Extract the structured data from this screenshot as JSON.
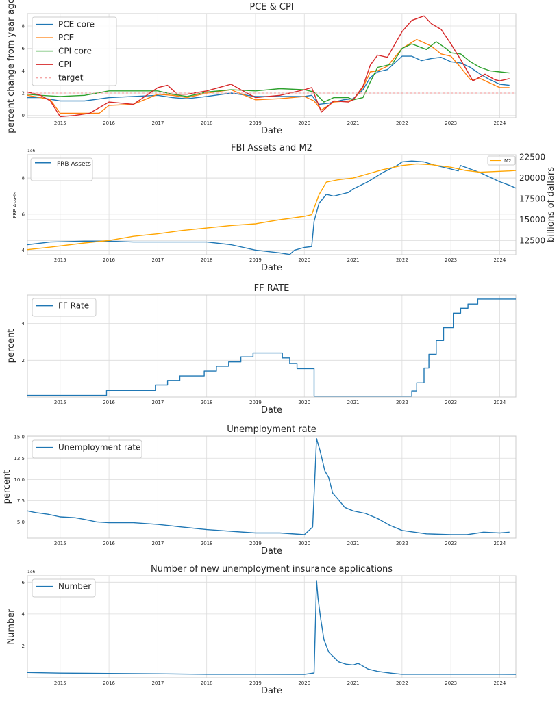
{
  "chart_data": [
    {
      "type": "line",
      "title": "PCE & CPI",
      "xlabel": "Date",
      "ylabel": "percent change from year ago",
      "xlim": [
        2014.33,
        2024.33
      ],
      "ylim": [
        -0.2,
        9.1
      ],
      "x_ticks": [
        "2015",
        "2016",
        "2017",
        "2018",
        "2019",
        "2020",
        "2021",
        "2022",
        "2023",
        "2024"
      ],
      "y_ticks": [
        "0",
        "2",
        "4",
        "6",
        "8"
      ],
      "legend": "upper-left",
      "grid": true,
      "series": [
        {
          "name": "PCE core",
          "color": "#1f77b4",
          "x": [
            2014.33,
            2014.6,
            2015,
            2015.5,
            2016,
            2016.5,
            2017,
            2017.3,
            2017.6,
            2018,
            2018.5,
            2019,
            2019.5,
            2020,
            2020.15,
            2020.3,
            2020.5,
            2020.8,
            2021,
            2021.2,
            2021.35,
            2021.5,
            2021.7,
            2022,
            2022.2,
            2022.4,
            2022.6,
            2022.8,
            2023,
            2023.2,
            2023.4,
            2023.6,
            2023.8,
            2024,
            2024.2
          ],
          "values": [
            1.6,
            1.6,
            1.3,
            1.3,
            1.6,
            1.7,
            1.8,
            1.6,
            1.5,
            1.7,
            2.0,
            1.7,
            1.7,
            1.7,
            1.8,
            1.0,
            1.1,
            1.4,
            1.5,
            2.3,
            3.4,
            3.9,
            4.1,
            5.3,
            5.3,
            4.9,
            5.1,
            5.2,
            4.8,
            4.7,
            4.3,
            3.7,
            3.2,
            2.8,
            2.7
          ]
        },
        {
          "name": "PCE",
          "color": "#ff7f0e",
          "x": [
            2014.33,
            2014.6,
            2014.8,
            2015,
            2015.5,
            2015.8,
            2016,
            2016.5,
            2017,
            2017.3,
            2017.6,
            2018,
            2018.5,
            2019,
            2019.5,
            2020,
            2020.2,
            2020.35,
            2020.6,
            2020.9,
            2021,
            2021.2,
            2021.35,
            2021.5,
            2021.7,
            2022,
            2022.3,
            2022.45,
            2022.6,
            2022.8,
            2023,
            2023.2,
            2023.4,
            2023.6,
            2023.8,
            2024,
            2024.2
          ],
          "values": [
            1.8,
            1.6,
            1.4,
            0.2,
            0.2,
            0.2,
            0.9,
            1.0,
            1.9,
            1.8,
            1.6,
            2.0,
            2.3,
            1.4,
            1.5,
            1.7,
            1.3,
            0.5,
            1.2,
            1.3,
            1.4,
            2.5,
            3.9,
            4.0,
            4.4,
            6.0,
            6.8,
            6.5,
            6.2,
            5.5,
            5.3,
            4.3,
            3.2,
            3.3,
            2.9,
            2.5,
            2.5
          ]
        },
        {
          "name": "CPI core",
          "color": "#2ca02c",
          "x": [
            2014.33,
            2014.6,
            2015,
            2015.5,
            2016,
            2016.5,
            2017,
            2017.3,
            2017.6,
            2018,
            2018.5,
            2019,
            2019.5,
            2020,
            2020.2,
            2020.4,
            2020.6,
            2020.9,
            2021,
            2021.2,
            2021.35,
            2021.5,
            2021.8,
            2022,
            2022.2,
            2022.5,
            2022.7,
            2022.9,
            2023,
            2023.2,
            2023.4,
            2023.6,
            2023.8,
            2024,
            2024.2
          ],
          "values": [
            1.9,
            1.8,
            1.7,
            1.8,
            2.2,
            2.2,
            2.2,
            1.9,
            1.7,
            2.1,
            2.3,
            2.2,
            2.4,
            2.3,
            2.1,
            1.2,
            1.6,
            1.6,
            1.4,
            1.6,
            3.0,
            4.3,
            4.6,
            6.0,
            6.4,
            5.9,
            6.6,
            6.0,
            5.6,
            5.5,
            4.8,
            4.3,
            4.0,
            3.9,
            3.8
          ]
        },
        {
          "name": "CPI",
          "color": "#d62728",
          "x": [
            2014.33,
            2014.6,
            2014.8,
            2015,
            2015.3,
            2015.6,
            2016,
            2016.5,
            2017,
            2017.2,
            2017.4,
            2017.6,
            2018,
            2018.5,
            2018.7,
            2019,
            2019.5,
            2020,
            2020.15,
            2020.35,
            2020.6,
            2020.9,
            2021,
            2021.2,
            2021.35,
            2021.5,
            2021.7,
            2022,
            2022.2,
            2022.45,
            2022.6,
            2022.8,
            2023,
            2023.2,
            2023.45,
            2023.7,
            2023.9,
            2024,
            2024.2
          ],
          "values": [
            2.1,
            1.8,
            1.3,
            -0.1,
            0.0,
            0.2,
            1.2,
            1.0,
            2.5,
            2.7,
            1.9,
            1.9,
            2.2,
            2.8,
            2.3,
            1.6,
            1.8,
            2.3,
            2.5,
            0.3,
            1.3,
            1.2,
            1.4,
            2.6,
            4.5,
            5.4,
            5.2,
            7.5,
            8.5,
            8.9,
            8.2,
            7.7,
            6.4,
            5.0,
            3.1,
            3.7,
            3.2,
            3.1,
            3.3
          ]
        },
        {
          "name": "target",
          "color": "#f4a6a6",
          "x": [
            2014.33,
            2024.33
          ],
          "values": [
            2,
            2
          ]
        }
      ]
    },
    {
      "type": "line",
      "title": "FBI Assets and M2",
      "xlabel": "Date",
      "ylabel": "FRB Assets",
      "y_offset_label": "1e6",
      "y2label": "billions of dallars",
      "xlim": [
        2014.33,
        2024.33
      ],
      "ylim": [
        3.75,
        9.3
      ],
      "y2lim": [
        10800,
        22800
      ],
      "x_ticks": [
        "2015",
        "2016",
        "2017",
        "2018",
        "2019",
        "2020",
        "2021",
        "2022",
        "2023",
        "2024"
      ],
      "y_ticks": [
        "4",
        "6",
        "8"
      ],
      "y2_ticks": [
        "12500",
        "15000",
        "17500",
        "20000",
        "22500"
      ],
      "legend": "upper-left",
      "legend2": "upper-right",
      "grid": true,
      "series": [
        {
          "name": "FRB Assets",
          "axis": "left",
          "color": "#1f77b4",
          "x": [
            2014.33,
            2014.8,
            2015.5,
            2016,
            2016.5,
            2017,
            2017.5,
            2018,
            2018.5,
            2019,
            2019.5,
            2019.7,
            2019.8,
            2020,
            2020.15,
            2020.2,
            2020.3,
            2020.45,
            2020.6,
            2020.9,
            2021,
            2021.3,
            2021.6,
            2021.9,
            2022,
            2022.2,
            2022.45,
            2022.7,
            2023,
            2023.15,
            2023.2,
            2023.3,
            2023.6,
            2024,
            2024.2,
            2024.33
          ],
          "values": [
            4.3,
            4.45,
            4.5,
            4.5,
            4.45,
            4.45,
            4.45,
            4.45,
            4.3,
            4.0,
            3.85,
            3.76,
            4.0,
            4.15,
            4.2,
            5.6,
            6.6,
            7.1,
            7.0,
            7.2,
            7.4,
            7.8,
            8.3,
            8.7,
            8.9,
            8.95,
            8.9,
            8.7,
            8.5,
            8.4,
            8.7,
            8.6,
            8.3,
            7.8,
            7.6,
            7.45
          ]
        },
        {
          "name": "M2",
          "axis": "right",
          "color": "#ffa500",
          "x": [
            2014.33,
            2014.8,
            2015.5,
            2016,
            2016.5,
            2017,
            2017.5,
            2018,
            2018.5,
            2019,
            2019.5,
            2020,
            2020.15,
            2020.3,
            2020.45,
            2020.7,
            2021,
            2021.3,
            2021.6,
            2022,
            2022.3,
            2022.6,
            2023,
            2023.3,
            2023.6,
            2024,
            2024.2,
            2024.33
          ],
          "values": [
            11400,
            11700,
            12200,
            12500,
            13000,
            13300,
            13700,
            14000,
            14300,
            14500,
            15000,
            15400,
            15600,
            18000,
            19500,
            19800,
            20000,
            20500,
            21000,
            21500,
            21700,
            21600,
            21300,
            20900,
            20700,
            20800,
            20850,
            20900
          ]
        }
      ]
    },
    {
      "type": "line",
      "title": "FF RATE",
      "xlabel": "Date",
      "ylabel": "percent",
      "xlim": [
        2014.33,
        2024.33
      ],
      "ylim": [
        0.0,
        5.55
      ],
      "x_ticks": [
        "2015",
        "2016",
        "2017",
        "2018",
        "2019",
        "2020",
        "2021",
        "2022",
        "2023",
        "2024"
      ],
      "y_ticks": [
        "2",
        "4"
      ],
      "legend": "upper-left",
      "grid": true,
      "series": [
        {
          "name": "FF Rate",
          "color": "#1f77b4",
          "step": true,
          "x": [
            2014.33,
            2015.95,
            2016.95,
            2017.2,
            2017.45,
            2017.95,
            2018.2,
            2018.45,
            2018.7,
            2018.95,
            2019.55,
            2019.7,
            2019.85,
            2020.2,
            2022.2,
            2022.3,
            2022.45,
            2022.55,
            2022.7,
            2022.85,
            2023.05,
            2023.2,
            2023.35,
            2023.55,
            2024.33
          ],
          "values": [
            0.09,
            0.36,
            0.65,
            0.9,
            1.15,
            1.41,
            1.68,
            1.91,
            2.19,
            2.4,
            2.13,
            1.83,
            1.55,
            0.05,
            0.33,
            0.77,
            1.58,
            2.33,
            3.08,
            3.78,
            4.57,
            4.83,
            5.06,
            5.33,
            5.33
          ]
        }
      ]
    },
    {
      "type": "line",
      "title": "Unemployment rate",
      "xlabel": "Date",
      "ylabel": "percent",
      "xlim": [
        2014.33,
        2024.33
      ],
      "ylim": [
        3.1,
        15.1
      ],
      "x_ticks": [
        "2015",
        "2016",
        "2017",
        "2018",
        "2019",
        "2020",
        "2021",
        "2022",
        "2023",
        "2024"
      ],
      "y_ticks": [
        "5.0",
        "7.5",
        "10.0",
        "12.5",
        "15.0"
      ],
      "legend": "upper-left",
      "grid": true,
      "series": [
        {
          "name": "Unemployment rate",
          "color": "#1f77b4",
          "x": [
            2014.33,
            2014.5,
            2014.75,
            2015,
            2015.3,
            2015.5,
            2015.75,
            2016,
            2016.5,
            2017,
            2017.5,
            2018,
            2018.5,
            2019,
            2019.5,
            2020,
            2020.17,
            2020.25,
            2020.33,
            2020.42,
            2020.5,
            2020.58,
            2020.67,
            2020.83,
            2021,
            2021.25,
            2021.5,
            2021.75,
            2022,
            2022.5,
            2023,
            2023.33,
            2023.67,
            2024,
            2024.2
          ],
          "values": [
            6.3,
            6.1,
            5.9,
            5.6,
            5.5,
            5.3,
            5.0,
            4.9,
            4.9,
            4.7,
            4.4,
            4.1,
            3.9,
            3.7,
            3.7,
            3.5,
            4.4,
            14.8,
            13.2,
            11.0,
            10.2,
            8.4,
            7.8,
            6.7,
            6.3,
            6.0,
            5.4,
            4.6,
            4.0,
            3.6,
            3.5,
            3.5,
            3.8,
            3.7,
            3.8
          ]
        }
      ]
    },
    {
      "type": "line",
      "title": "Number of new unemployment insurance applications",
      "xlabel": "Date",
      "ylabel": "Number",
      "y_offset_label": "1e6",
      "xlim": [
        2014.33,
        2024.33
      ],
      "ylim": [
        0.0,
        6.4
      ],
      "x_ticks": [
        "2015",
        "2016",
        "2017",
        "2018",
        "2019",
        "2020",
        "2021",
        "2022",
        "2023",
        "2024"
      ],
      "y_ticks": [
        "2",
        "4",
        "6"
      ],
      "legend": "upper-left",
      "grid": true,
      "series": [
        {
          "name": "Number",
          "color": "#1f77b4",
          "x": [
            2014.33,
            2015,
            2016,
            2017,
            2018,
            2019,
            2020,
            2020.2,
            2020.25,
            2020.28,
            2020.33,
            2020.4,
            2020.5,
            2020.6,
            2020.7,
            2020.85,
            2021,
            2021.1,
            2021.3,
            2021.5,
            2021.8,
            2022,
            2022.5,
            2023,
            2023.5,
            2024,
            2024.33
          ],
          "values": [
            0.33,
            0.29,
            0.27,
            0.25,
            0.22,
            0.22,
            0.21,
            0.3,
            6.1,
            5.0,
            3.8,
            2.4,
            1.6,
            1.3,
            1.0,
            0.85,
            0.8,
            0.9,
            0.55,
            0.4,
            0.28,
            0.22,
            0.22,
            0.22,
            0.22,
            0.22,
            0.21
          ]
        }
      ]
    }
  ]
}
